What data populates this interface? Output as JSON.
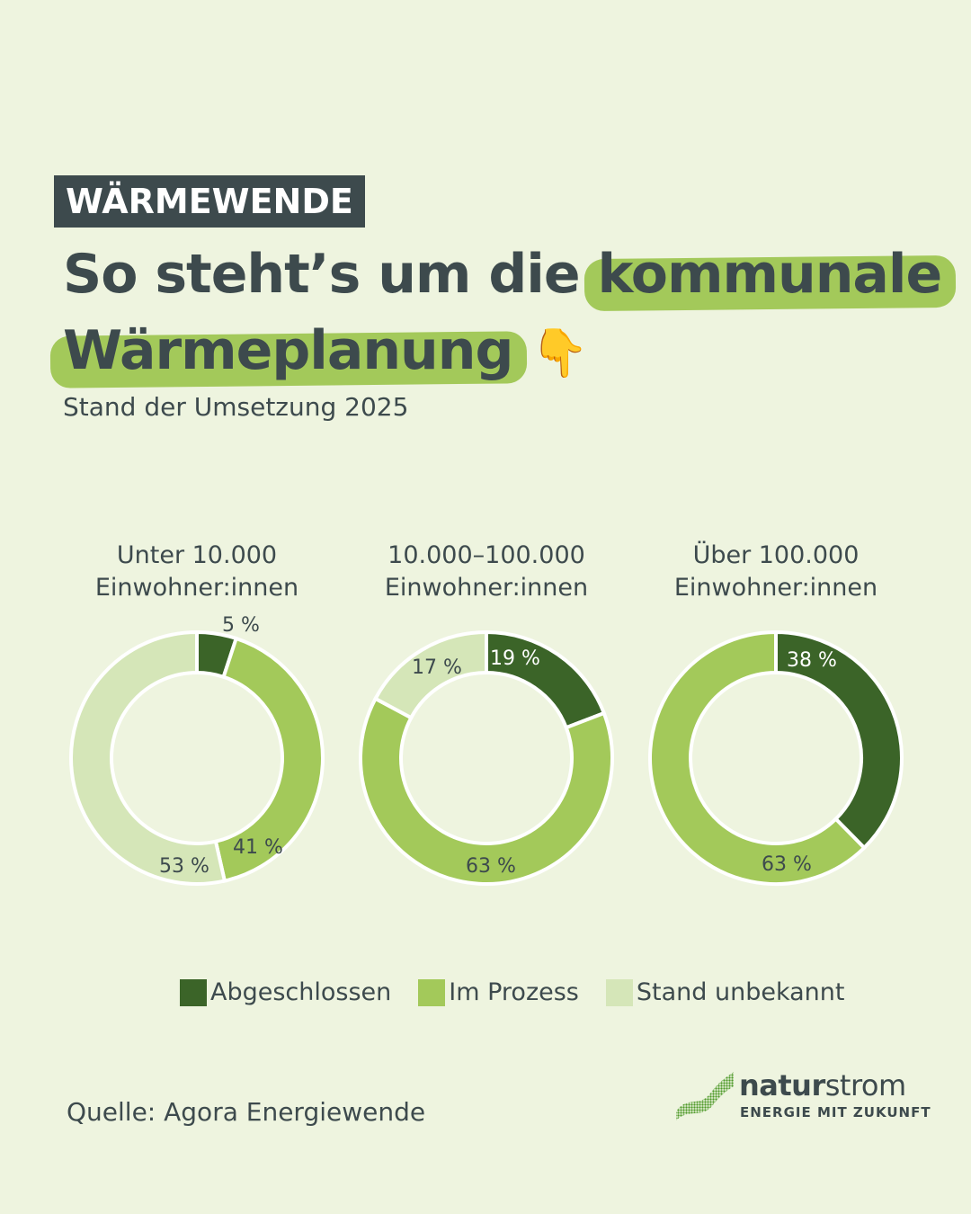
{
  "tag": "WÄRMEWENDE",
  "title": {
    "part1": "So steht’s um die",
    "highlight1": "kommunale",
    "highlight2": "Wärmeplanung",
    "emoji": "👇"
  },
  "subtitle": "Stand der Umsetzung 2025",
  "colors": {
    "abgeschlossen": "#3b6428",
    "im_prozess": "#a3c95a",
    "unbekannt": "#d5e6b8",
    "text": "#3d4a4d",
    "background": "#eef4df"
  },
  "chart_data": [
    {
      "type": "pie",
      "title_line1": "Unter 10.000",
      "title_line2": "Einwohner:innen",
      "categories": [
        "Abgeschlossen",
        "Im Prozess",
        "Stand unbekannt"
      ],
      "values": [
        5,
        41,
        53
      ],
      "labels": [
        "5 %",
        "41 %",
        "53 %"
      ]
    },
    {
      "type": "pie",
      "title_line1": "10.000–100.000",
      "title_line2": "Einwohner:innen",
      "categories": [
        "Abgeschlossen",
        "Im Prozess",
        "Stand unbekannt"
      ],
      "values": [
        19,
        63,
        17
      ],
      "labels": [
        "19 %",
        "63 %",
        "17 %"
      ]
    },
    {
      "type": "pie",
      "title_line1": "Über 100.000",
      "title_line2": "Einwohner:innen",
      "categories": [
        "Abgeschlossen",
        "Im Prozess"
      ],
      "values": [
        38,
        63
      ],
      "labels": [
        "38 %",
        "63 %"
      ]
    }
  ],
  "legend": [
    {
      "label": "Abgeschlossen",
      "color": "#3b6428"
    },
    {
      "label": "Im Prozess",
      "color": "#a3c95a"
    },
    {
      "label": "Stand unbekannt",
      "color": "#d5e6b8"
    }
  ],
  "source": "Quelle: Agora Energiewende",
  "logo": {
    "bold": "natur",
    "regular": "strom",
    "tagline": "ENERGIE MIT ZUKUNFT"
  }
}
